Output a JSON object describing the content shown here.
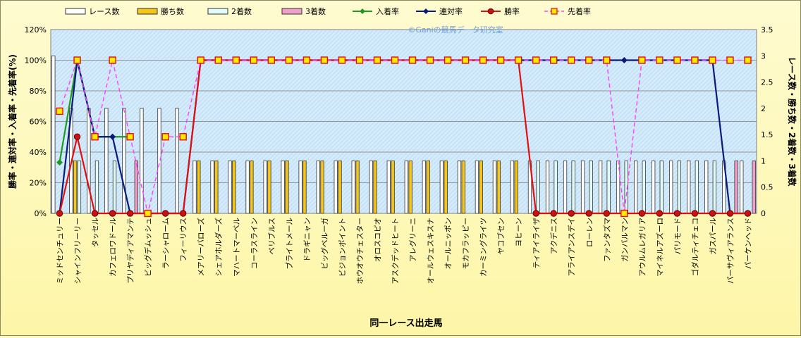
{
  "chart_data": {
    "type": "bar+line",
    "xlabel": "同一レース出走馬",
    "ylabel_left": "勝率・連対率・入着率・先着率(%)",
    "ylabel_right": "レース数・勝ち数・2着数・3着数",
    "watermark": "©Ganiの競馬データ研究室",
    "ylim_left": [
      0,
      120
    ],
    "ylim_right": [
      0,
      3.5
    ],
    "yticks_left": [
      "0%",
      "20%",
      "40%",
      "60%",
      "80%",
      "100%",
      "120%"
    ],
    "yticks_right": [
      "0",
      "0.5",
      "1",
      "1.5",
      "2",
      "2.5",
      "3",
      "3.5"
    ],
    "categories": [
      "ミッドセンチュリー",
      "シャインフリーリー",
      "タッセル",
      "カフェロワドール",
      "プリヤディアマンテ",
      "ビッグデムッシュ",
      "ラーシャローム",
      "フィーリウス",
      "メアリーバローズ",
      "シェアホルダーズ",
      "マハートマーベル",
      "コーラスライン",
      "ベリブルス",
      "ブライトメール",
      "ドラギニャン",
      "ビッグベルーガ",
      "ビジョンポイント",
      "ホウオウチェスター",
      "オロスコピオ",
      "アスクデッドヒート",
      "アレグリーニ",
      "オールウェスキスナ",
      "オールニッポン",
      "モカフラッピー",
      "カーミングライツ",
      "ヤコブセン",
      "ヨヒーン",
      "ティアイライザ",
      "アクデニス",
      "アライアンスデイ",
      "ローレン",
      "ファンタズマ",
      "ガンバルマン",
      "アウルムレガリア",
      "マイネルアズーロ",
      "パリモード",
      "ゴダルティチェコ",
      "ガスパール",
      "パーサヴィアランス",
      "パーケンヘッド"
    ],
    "series": [
      {
        "name": "レース数",
        "kind": "bar",
        "axis": "right",
        "color": "#ffffff",
        "values": [
          3,
          2,
          2,
          2,
          2,
          2,
          2,
          2,
          1,
          1,
          1,
          1,
          1,
          1,
          1,
          1,
          1,
          1,
          1,
          1,
          1,
          1,
          1,
          1,
          1,
          1,
          1,
          1,
          1,
          1,
          1,
          1,
          1,
          1,
          1,
          1,
          1,
          1,
          1,
          1
        ]
      },
      {
        "name": "勝ち数",
        "kind": "bar",
        "axis": "right",
        "color": "#f5c518",
        "values": [
          0,
          1,
          0,
          0,
          0,
          0,
          0,
          0,
          1,
          1,
          1,
          1,
          1,
          1,
          1,
          1,
          1,
          1,
          1,
          1,
          1,
          1,
          1,
          1,
          1,
          1,
          1,
          0,
          0,
          0,
          0,
          0,
          0,
          0,
          0,
          0,
          0,
          0,
          0,
          0
        ]
      },
      {
        "name": "2着数",
        "kind": "bar",
        "axis": "right",
        "color": "#e0fbf8",
        "values": [
          0,
          1,
          1,
          1,
          0,
          0,
          0,
          0,
          0,
          0,
          0,
          0,
          0,
          0,
          0,
          0,
          0,
          0,
          0,
          0,
          0,
          0,
          0,
          0,
          0,
          0,
          0,
          1,
          1,
          1,
          1,
          1,
          1,
          1,
          1,
          1,
          1,
          1,
          0,
          0
        ]
      },
      {
        "name": "3着数",
        "kind": "bar",
        "axis": "right",
        "color": "#f0a0c8",
        "values": [
          0,
          0,
          0,
          0,
          1,
          0,
          0,
          0,
          0,
          0,
          0,
          0,
          0,
          0,
          0,
          0,
          0,
          0,
          0,
          0,
          0,
          0,
          0,
          0,
          0,
          0,
          0,
          0,
          0,
          0,
          0,
          0,
          0,
          0,
          0,
          0,
          0,
          0,
          1,
          1
        ]
      },
      {
        "name": "入着率",
        "kind": "line",
        "axis": "left",
        "color": "#1f9a1f",
        "marker": "diamond",
        "dash": false,
        "values": [
          33.3,
          100,
          50,
          50,
          50,
          null,
          null,
          null,
          null,
          null,
          null,
          null,
          null,
          null,
          null,
          null,
          null,
          null,
          null,
          null,
          null,
          null,
          null,
          null,
          null,
          null,
          null,
          null,
          null,
          null,
          null,
          null,
          null,
          null,
          null,
          null,
          null,
          null,
          null,
          null
        ]
      },
      {
        "name": "連対率",
        "kind": "line",
        "axis": "left",
        "color": "#0a1a7a",
        "marker": "diamond",
        "dash": false,
        "values": [
          0,
          100,
          50,
          50,
          0,
          0,
          0,
          0,
          100,
          100,
          100,
          100,
          100,
          100,
          100,
          100,
          100,
          100,
          100,
          100,
          100,
          100,
          100,
          100,
          100,
          100,
          100,
          100,
          100,
          100,
          100,
          100,
          100,
          100,
          100,
          100,
          100,
          100,
          0,
          0
        ]
      },
      {
        "name": "勝率",
        "kind": "line",
        "axis": "left",
        "color": "#e01010",
        "marker": "circle",
        "dash": false,
        "values": [
          0,
          50,
          0,
          0,
          0,
          0,
          0,
          0,
          100,
          100,
          100,
          100,
          100,
          100,
          100,
          100,
          100,
          100,
          100,
          100,
          100,
          100,
          100,
          100,
          100,
          100,
          100,
          0,
          0,
          0,
          0,
          0,
          0,
          0,
          0,
          0,
          0,
          0,
          0,
          0
        ]
      },
      {
        "name": "先着率",
        "kind": "line",
        "axis": "left",
        "color": "#ff40ff",
        "marker": "square",
        "dash": true,
        "values": [
          66.7,
          100,
          50,
          100,
          50,
          0,
          50,
          50,
          100,
          100,
          100,
          100,
          100,
          100,
          100,
          100,
          100,
          100,
          100,
          100,
          100,
          100,
          100,
          100,
          100,
          100,
          100,
          100,
          100,
          100,
          100,
          100,
          0,
          100,
          100,
          100,
          100,
          100,
          100,
          100
        ]
      }
    ]
  }
}
